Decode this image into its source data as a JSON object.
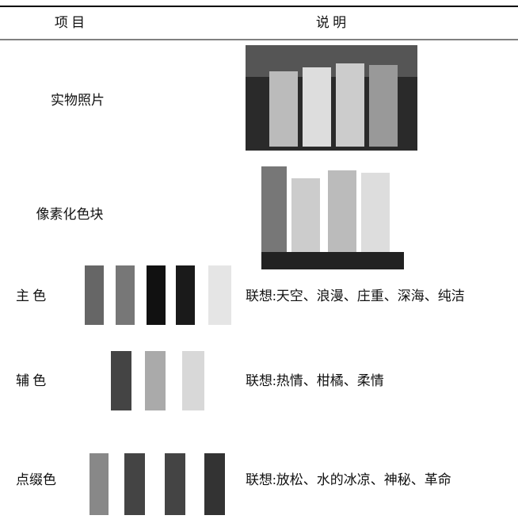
{
  "table": {
    "header": [
      "项 目",
      "说 明"
    ],
    "rows": [
      [
        "实物照片",
        null
      ],
      [
        "像素化色块",
        null
      ],
      [
        "主 色",
        "联想:天空、浪漫、庄重、深海、纯洁"
      ],
      [
        "辅 色",
        "联想:热情、柑橘、柔情"
      ],
      [
        "点缀色",
        "联想:放松、水的冰凉、神秘、革命"
      ]
    ]
  }
}
